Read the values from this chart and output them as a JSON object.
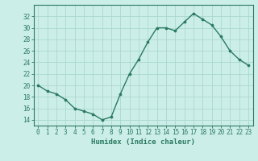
{
  "x_vals": [
    0,
    1,
    2,
    3,
    4,
    5,
    6,
    7,
    8,
    9,
    10,
    11,
    12,
    13,
    14,
    15,
    16,
    17,
    18,
    19,
    20,
    21,
    22,
    23
  ],
  "y_vals": [
    20,
    19,
    18.5,
    17.5,
    16,
    15.5,
    15,
    14,
    14.5,
    18.5,
    22,
    24.5,
    27.5,
    30,
    30,
    29.5,
    31,
    32.5,
    31.5,
    30.5,
    28.5,
    26,
    24.5,
    23.5
  ],
  "line_color": "#2a7a60",
  "marker_color": "#2a7a60",
  "bg_color": "#cceee8",
  "grid_color": "#aad8d0",
  "xlabel": "Humidex (Indice chaleur)",
  "ylim": [
    13,
    34
  ],
  "xlim": [
    -0.5,
    23.5
  ],
  "yticks": [
    14,
    16,
    18,
    20,
    22,
    24,
    26,
    28,
    30,
    32
  ],
  "xticks": [
    0,
    1,
    2,
    3,
    4,
    5,
    6,
    7,
    8,
    9,
    10,
    11,
    12,
    13,
    14,
    15,
    16,
    17,
    18,
    19,
    20,
    21,
    22,
    23
  ],
  "tick_fontsize": 5.5,
  "xlabel_fontsize": 6.5,
  "spine_color": "#2a7a60"
}
